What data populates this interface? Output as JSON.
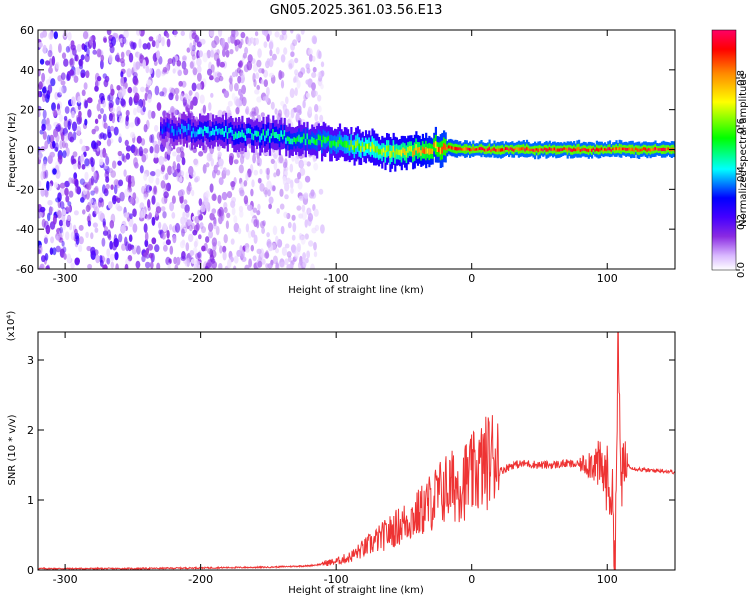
{
  "title": "GN05.2025.361.03.56.E13",
  "chart_data": [
    {
      "type": "heatmap",
      "xlabel": "Height of straight line (km)",
      "ylabel": "Frequency (Hz)",
      "xlim": [
        -320,
        150
      ],
      "ylim": [
        -60,
        60
      ],
      "xticks": [
        -300,
        -200,
        -100,
        0,
        100
      ],
      "yticks": [
        -60,
        -40,
        -20,
        0,
        20,
        40,
        60
      ],
      "colorbar": {
        "label": "Normalized spectral amplitude",
        "range": [
          0.0,
          1.0
        ],
        "ticks": [
          0.0,
          0.2,
          0.4,
          0.6,
          0.8
        ],
        "tick_labels": [
          "0.0",
          "0.2",
          "0.4",
          "0.6",
          "0.8"
        ],
        "colormap": [
          "#ffffff",
          "#d9b8ff",
          "#8a2be2",
          "#4400ff",
          "#0000ff",
          "#00ffff",
          "#00ff00",
          "#ffff00",
          "#ff8800",
          "#ff0000",
          "#ff0066"
        ]
      },
      "ridge": {
        "x": [
          -230,
          -200,
          -150,
          -120,
          -100,
          -80,
          -60,
          -40,
          -20,
          0,
          50,
          100,
          150
        ],
        "center_hz": [
          11,
          9,
          7,
          5,
          3,
          1,
          -1,
          0,
          1,
          0,
          0,
          0,
          0
        ],
        "amplitude": [
          0.35,
          0.45,
          0.5,
          0.55,
          0.6,
          0.7,
          0.75,
          0.85,
          0.95,
          1.0,
          1.0,
          1.0,
          1.0
        ]
      },
      "noise_region_x": [
        -320,
        -110
      ],
      "grid": false
    },
    {
      "type": "line",
      "xlabel": "Height of straight line (km)",
      "ylabel": "SNR (10 * v/v)",
      "y_multiplier": "(x10⁴)",
      "xlim": [
        -320,
        150
      ],
      "ylim": [
        0,
        3.4
      ],
      "xticks": [
        -300,
        -200,
        -100,
        0,
        100
      ],
      "yticks": [
        0,
        1,
        2,
        3
      ],
      "series": [
        {
          "color": "#ee3333",
          "x": [
            -320,
            -250,
            -200,
            -150,
            -120,
            -100,
            -90,
            -80,
            -70,
            -60,
            -50,
            -40,
            -30,
            -20,
            -10,
            0,
            10,
            20,
            30,
            40,
            50,
            60,
            70,
            80,
            90,
            95,
            100,
            103,
            106,
            108,
            110,
            115,
            120,
            130,
            140,
            150
          ],
          "y": [
            0.01,
            0.01,
            0.02,
            0.03,
            0.05,
            0.1,
            0.15,
            0.25,
            0.35,
            0.45,
            0.55,
            0.65,
            0.8,
            0.95,
            1.0,
            1.1,
            1.25,
            1.4,
            1.5,
            1.52,
            1.5,
            1.5,
            1.52,
            1.5,
            1.55,
            1.45,
            1.3,
            1.15,
            0.2,
            3.35,
            1.3,
            1.5,
            1.45,
            1.42,
            1.42,
            1.4
          ]
        }
      ],
      "grid": false
    }
  ]
}
